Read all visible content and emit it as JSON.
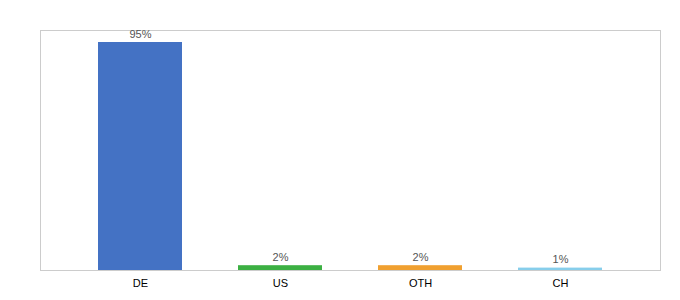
{
  "chart_data": {
    "type": "bar",
    "categories": [
      "DE",
      "US",
      "OTH",
      "CH"
    ],
    "values": [
      95,
      2,
      2,
      1
    ],
    "value_labels": [
      "95%",
      "2%",
      "2%",
      "1%"
    ],
    "colors": [
      "#4472c4",
      "#3cb043",
      "#f0a030",
      "#87ceeb"
    ],
    "ylim": [
      0,
      100
    ],
    "data_labels": true,
    "tick_labels": "x",
    "grid": false
  }
}
